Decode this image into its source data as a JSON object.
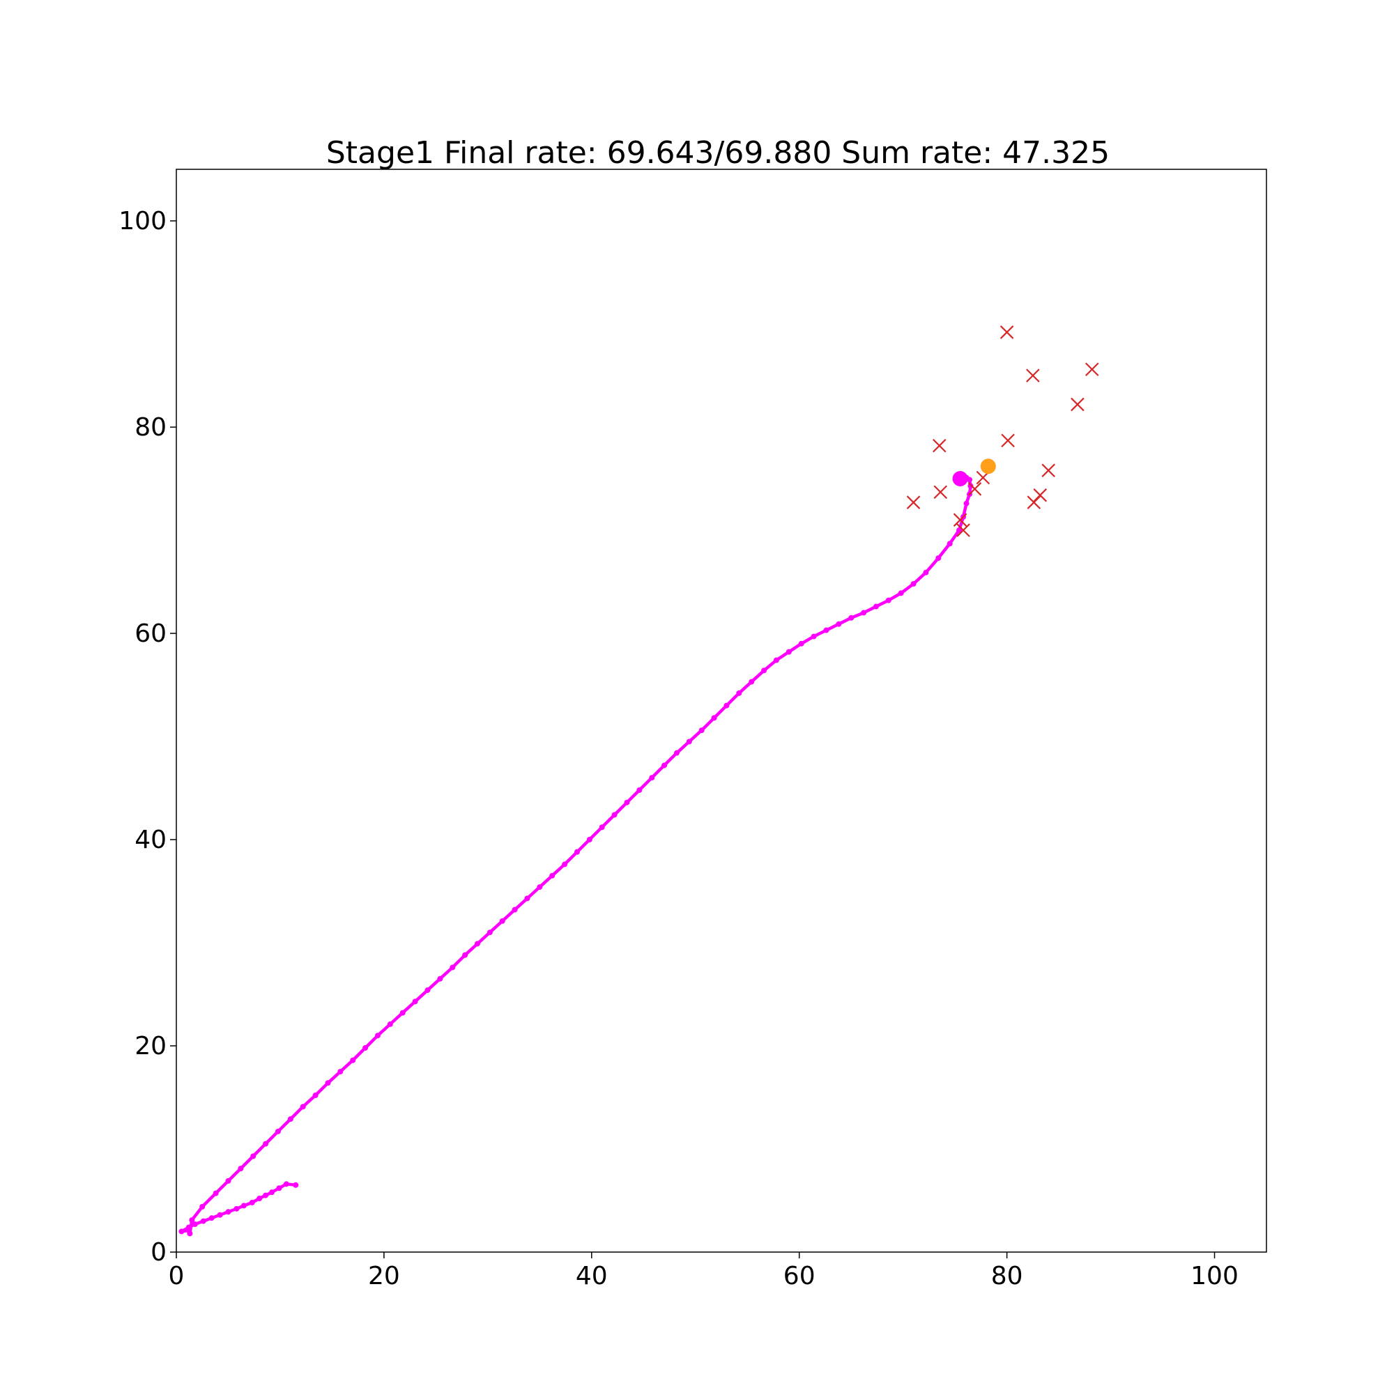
{
  "chart_data": {
    "type": "scatter",
    "title": "Stage1    Final rate: 69.643/69.880    Sum rate: 47.325",
    "xlabel": "",
    "ylabel": "",
    "xlim": [
      0,
      105
    ],
    "ylim": [
      0,
      105
    ],
    "x_ticks": [
      0,
      20,
      40,
      60,
      80,
      100
    ],
    "y_ticks": [
      0,
      20,
      40,
      60,
      80,
      100
    ],
    "grid": false,
    "legend": "none",
    "colors": {
      "path": "#ff00ff",
      "users": "#d62728",
      "target": "#ff9f1a",
      "end": "#ff00ff"
    },
    "series": [
      {
        "type": "line",
        "marker": "dot",
        "x": [
          11.5,
          10.6,
          9.9,
          9.2,
          8.6,
          8.0,
          7.3,
          6.5,
          5.8,
          5.0,
          4.2,
          3.4,
          2.6,
          1.8,
          1.2,
          0.5,
          1.2,
          1.3,
          1.5,
          2.5,
          3.8,
          5.0,
          6.2,
          7.4,
          8.6,
          9.8,
          11.0,
          12.2,
          13.4,
          14.6,
          15.8,
          17.0,
          18.2,
          19.4,
          20.6,
          21.8,
          23.0,
          24.2,
          25.4,
          26.6,
          27.8,
          29.0,
          30.2,
          31.4,
          32.6,
          33.8,
          35.0,
          36.2,
          37.4,
          38.6,
          39.8,
          41.0,
          42.2,
          43.4,
          44.6,
          45.8,
          47.0,
          48.2,
          49.4,
          50.6,
          51.8,
          53.0,
          54.2,
          55.4,
          56.6,
          57.8,
          59.0,
          60.2,
          61.4,
          62.6,
          63.8,
          65.0,
          66.2,
          67.4,
          68.6,
          69.8,
          71.0,
          72.2,
          73.4,
          74.5,
          75.4,
          75.8,
          76.1,
          76.4,
          76.5,
          76.4,
          76.1,
          75.8,
          75.5
        ],
        "y": [
          6.5,
          6.6,
          6.2,
          5.8,
          5.5,
          5.2,
          4.8,
          4.5,
          4.2,
          3.9,
          3.6,
          3.3,
          3.0,
          2.7,
          2.4,
          2.0,
          2.1,
          1.8,
          3.1,
          4.4,
          5.7,
          6.9,
          8.1,
          9.3,
          10.5,
          11.7,
          12.9,
          14.1,
          15.2,
          16.4,
          17.5,
          18.6,
          19.8,
          21.0,
          22.1,
          23.2,
          24.3,
          25.4,
          26.5,
          27.6,
          28.8,
          29.9,
          31.0,
          32.1,
          33.2,
          34.3,
          35.4,
          36.5,
          37.6,
          38.8,
          40.0,
          41.2,
          42.4,
          43.6,
          44.8,
          46.0,
          47.2,
          48.4,
          49.5,
          50.6,
          51.8,
          53.0,
          54.2,
          55.3,
          56.4,
          57.4,
          58.2,
          59.0,
          59.7,
          60.3,
          60.9,
          61.5,
          62.0,
          62.6,
          63.2,
          63.9,
          64.8,
          65.9,
          67.3,
          68.7,
          70.0,
          71.3,
          72.6,
          73.5,
          74.3,
          74.9,
          75.1,
          75.1,
          75.0
        ]
      },
      {
        "type": "scatter",
        "marker": "x",
        "x": [
          80.0,
          82.5,
          88.2,
          86.8,
          73.5,
          80.1,
          84.0,
          77.7,
          76.9,
          73.6,
          83.2,
          82.6,
          71.0,
          75.5,
          75.8
        ],
        "y": [
          89.2,
          85.0,
          85.6,
          82.2,
          78.2,
          78.7,
          75.8,
          75.1,
          74.0,
          73.7,
          73.4,
          72.7,
          72.7,
          71.0,
          70.0
        ]
      },
      {
        "type": "scatter",
        "marker": "circle",
        "x": [
          78.2
        ],
        "y": [
          76.2
        ]
      },
      {
        "type": "scatter",
        "marker": "circle",
        "x": [
          75.5
        ],
        "y": [
          75.0
        ]
      }
    ]
  }
}
